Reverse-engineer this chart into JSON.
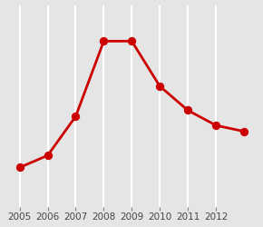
{
  "x_data": [
    2005,
    2006,
    2007,
    2008,
    2009,
    2010,
    2011,
    2012,
    2013
  ],
  "y_data": [
    38,
    42,
    55,
    80,
    80,
    65,
    57,
    52,
    50
  ],
  "x_ticks": [
    2005,
    2006,
    2007,
    2008,
    2009,
    2010,
    2011,
    2012
  ],
  "x_tick_labels": [
    "2005",
    "2006",
    "2007",
    "2008",
    "2009",
    "2010",
    "2011",
    "2012"
  ],
  "line_color": "#cc0000",
  "marker_color": "#cc0000",
  "marker_face": "#cc0000",
  "bg_color": "#e5e5e5",
  "grid_color": "#ffffff",
  "ylim": [
    25,
    92
  ],
  "xlim": [
    2004.5,
    2013.5
  ]
}
